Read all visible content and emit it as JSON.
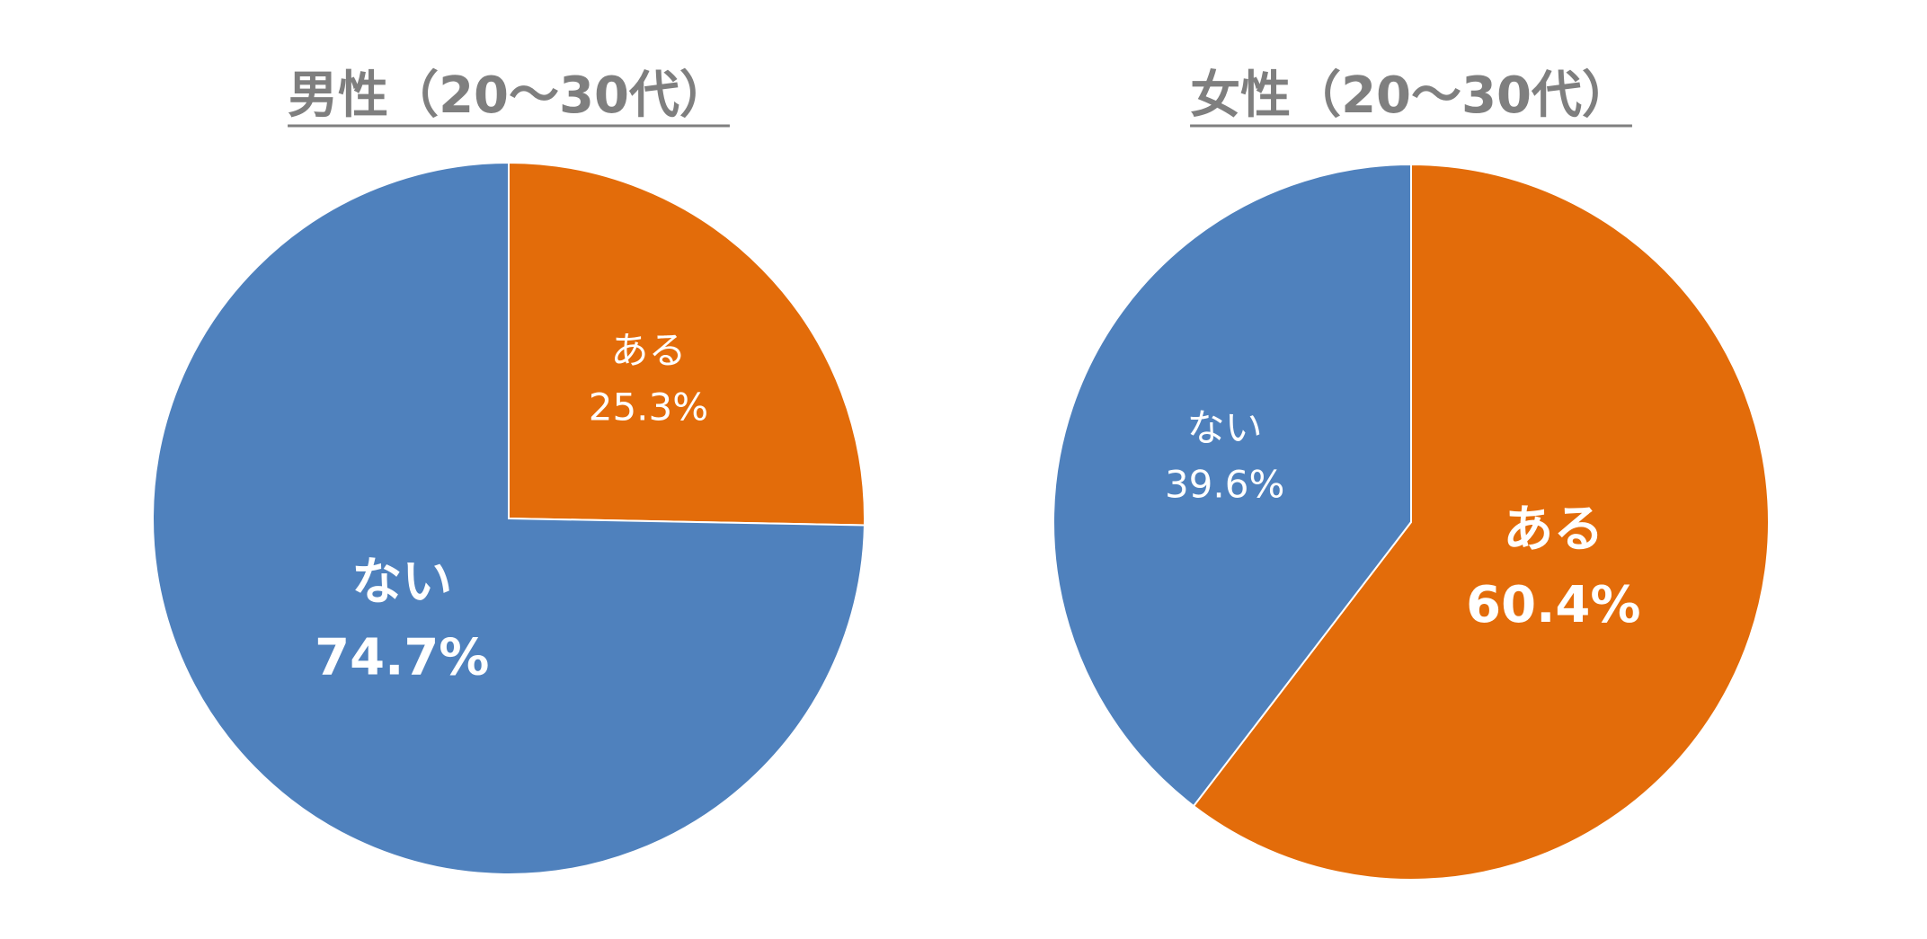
{
  "chart_data": [
    {
      "type": "pie",
      "title": "男性（20～30代）",
      "categories": [
        "ある",
        "ない"
      ],
      "values": [
        25.3,
        74.7
      ],
      "value_labels": [
        "25.3%",
        "74.7%"
      ],
      "colors": [
        "#e36c0a",
        "#4f81bd"
      ]
    },
    {
      "type": "pie",
      "title": "女性（20～30代）",
      "categories": [
        "ある",
        "ない"
      ],
      "values": [
        60.4,
        39.6
      ],
      "value_labels": [
        "60.4%",
        "39.6%"
      ],
      "colors": [
        "#e36c0a",
        "#4f81bd"
      ]
    }
  ]
}
